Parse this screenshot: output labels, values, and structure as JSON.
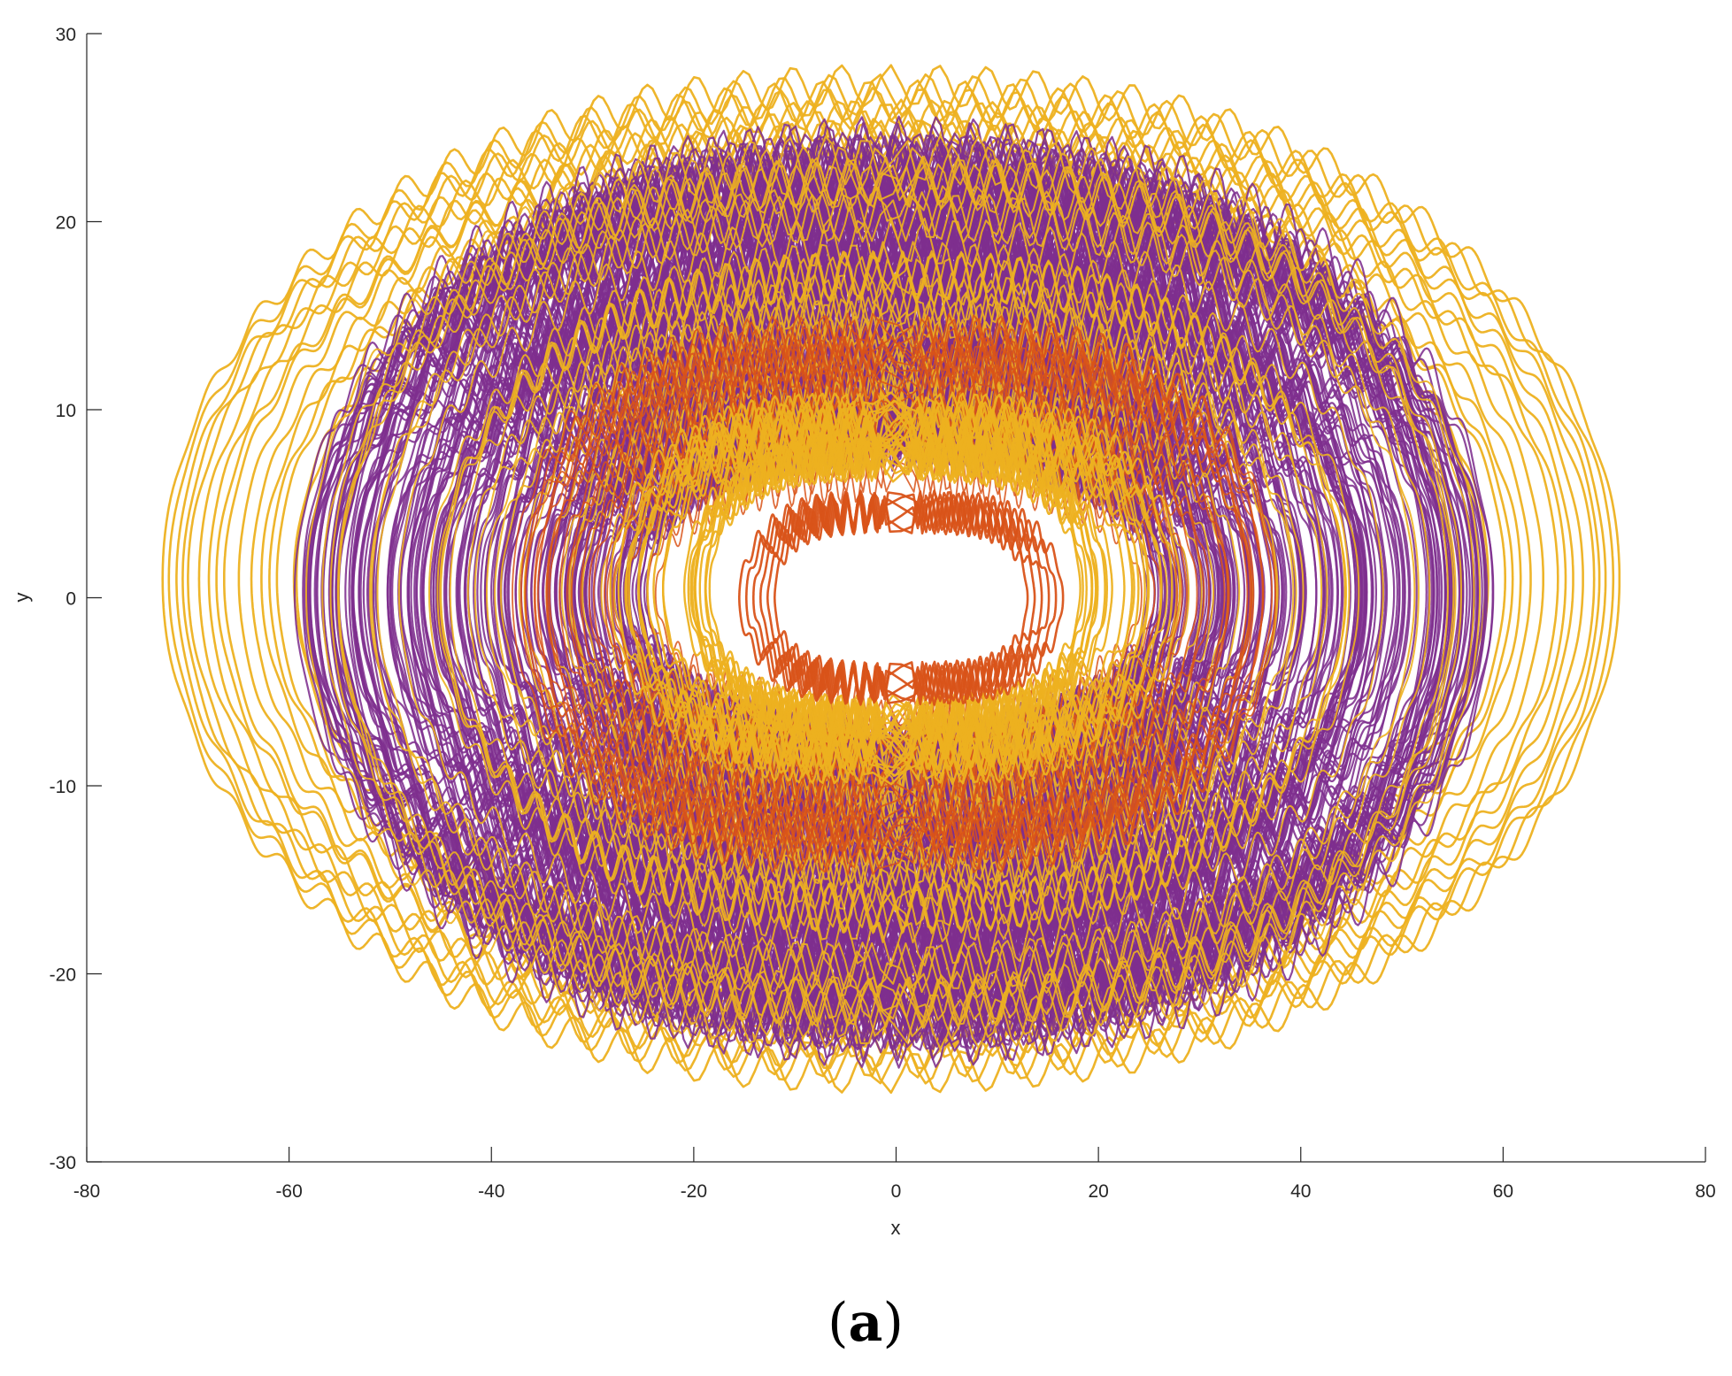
{
  "chart_data": {
    "type": "line",
    "title": "",
    "xlabel": "x",
    "ylabel": "y",
    "xlim": [
      -80,
      80
    ],
    "ylim": [
      -30,
      30
    ],
    "x_ticks": [
      -80,
      -60,
      -40,
      -20,
      0,
      20,
      40,
      60,
      80
    ],
    "y_ticks": [
      -30,
      -20,
      -10,
      0,
      10,
      20,
      30
    ],
    "x_tick_labels": [
      "-80",
      "-60",
      "-40",
      "-20",
      "0",
      "20",
      "40",
      "60",
      "80"
    ],
    "y_tick_labels": [
      "-30",
      "-20",
      "-10",
      "0",
      "10",
      "20",
      "30"
    ],
    "grid": false,
    "legend": "none",
    "series_colors": {
      "outer": "#EDB120",
      "middle": "#7E2F8E",
      "inner": "#D95319"
    },
    "trajectory_bands": [
      {
        "color": "#EDB120",
        "x_extent": [
          -72,
          71
        ],
        "y_extent": [
          -24,
          26.5
        ]
      },
      {
        "color": "#7E2F8E",
        "x_extent": [
          -59,
          59
        ],
        "y_extent": [
          -21,
          23
        ]
      },
      {
        "color": "#EDB120",
        "x_extent": [
          -27,
          27
        ],
        "y_extent": [
          -7,
          8
        ]
      },
      {
        "color": "#D95319",
        "x_extent": [
          -16,
          16
        ],
        "y_extent": [
          -5,
          5
        ]
      }
    ]
  },
  "caption": {
    "open": "(",
    "letter": "a",
    "close": ")"
  }
}
